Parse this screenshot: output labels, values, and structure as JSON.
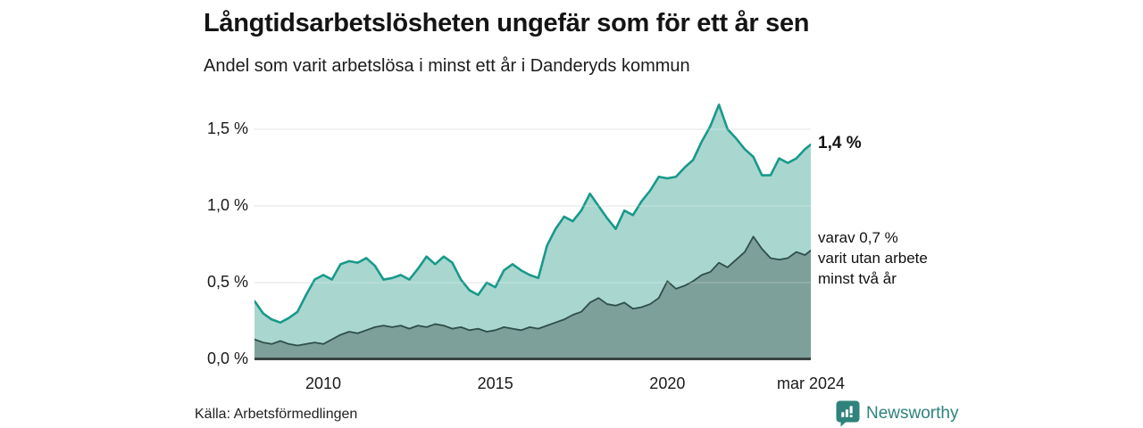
{
  "page": {
    "background": "#ffffff"
  },
  "chart_data": {
    "type": "area",
    "title": "Långtidsarbetslösheten ungefär som för ett år sen",
    "subtitle": "Andel som varit arbetslösa i minst ett år i Danderyds kommun",
    "source": "Källa: Arbetsförmedlingen",
    "brand": "Newsworthy",
    "x_unit": "decimal_year",
    "xlim": [
      2008.0,
      2024.17
    ],
    "ylim": [
      0,
      1.674
    ],
    "grid": true,
    "legend_position": "none",
    "colors": {
      "grid": "#d8d8d8",
      "baseline": "#3a4442",
      "text": "#1a1a1a",
      "brand_teal": "#2f837c"
    },
    "xticks": [
      {
        "value": 2010,
        "label": "2010"
      },
      {
        "value": 2015,
        "label": "2015"
      },
      {
        "value": 2020,
        "label": "2020"
      },
      {
        "value": 2024.17,
        "label": "mar 2024"
      }
    ],
    "yticks": [
      {
        "value": 0,
        "label": "0,0 %"
      },
      {
        "value": 0.5,
        "label": "0,5 %"
      },
      {
        "value": 1.0,
        "label": "1,0 %"
      },
      {
        "value": 1.5,
        "label": "1,5 %"
      }
    ],
    "x": [
      2008.0,
      2008.25,
      2008.5,
      2008.75,
      2009.0,
      2009.25,
      2009.5,
      2009.75,
      2010.0,
      2010.25,
      2010.5,
      2010.75,
      2011.0,
      2011.25,
      2011.5,
      2011.75,
      2012.0,
      2012.25,
      2012.5,
      2012.75,
      2013.0,
      2013.25,
      2013.5,
      2013.75,
      2014.0,
      2014.25,
      2014.5,
      2014.75,
      2015.0,
      2015.25,
      2015.5,
      2015.75,
      2016.0,
      2016.25,
      2016.5,
      2016.75,
      2017.0,
      2017.25,
      2017.5,
      2017.75,
      2018.0,
      2018.25,
      2018.5,
      2018.75,
      2019.0,
      2019.25,
      2019.5,
      2019.75,
      2020.0,
      2020.25,
      2020.5,
      2020.75,
      2021.0,
      2021.25,
      2021.5,
      2021.75,
      2022.0,
      2022.25,
      2022.5,
      2022.75,
      2023.0,
      2023.25,
      2023.5,
      2023.75,
      2024.0,
      2024.17
    ],
    "series": [
      {
        "name": "Andel arbetslösa i minst ett år",
        "line_color": "#18998a",
        "fill_color": "#a9d7d0",
        "line_width": 2.6,
        "end_label": "1,4 %",
        "values": [
          0.38,
          0.3,
          0.26,
          0.24,
          0.27,
          0.31,
          0.42,
          0.52,
          0.55,
          0.52,
          0.62,
          0.64,
          0.63,
          0.66,
          0.61,
          0.52,
          0.53,
          0.55,
          0.52,
          0.59,
          0.67,
          0.62,
          0.67,
          0.63,
          0.52,
          0.45,
          0.42,
          0.5,
          0.47,
          0.58,
          0.62,
          0.58,
          0.55,
          0.53,
          0.74,
          0.85,
          0.93,
          0.9,
          0.97,
          1.08,
          1.0,
          0.92,
          0.85,
          0.97,
          0.94,
          1.03,
          1.1,
          1.19,
          1.18,
          1.19,
          1.25,
          1.3,
          1.42,
          1.52,
          1.66,
          1.5,
          1.44,
          1.37,
          1.32,
          1.2,
          1.2,
          1.31,
          1.28,
          1.31,
          1.37,
          1.4
        ]
      },
      {
        "name": "Varav utan arbete minst två år",
        "line_color": "#2e4f49",
        "fill_color": "#7ea09a",
        "line_width": 1.8,
        "end_label_lines": [
          "varav 0,7 %",
          "varit utan arbete",
          "minst två år"
        ],
        "values": [
          0.13,
          0.11,
          0.1,
          0.12,
          0.1,
          0.09,
          0.1,
          0.11,
          0.1,
          0.13,
          0.16,
          0.18,
          0.17,
          0.19,
          0.21,
          0.22,
          0.21,
          0.22,
          0.2,
          0.22,
          0.21,
          0.23,
          0.22,
          0.2,
          0.21,
          0.19,
          0.2,
          0.18,
          0.19,
          0.21,
          0.2,
          0.19,
          0.21,
          0.2,
          0.22,
          0.24,
          0.26,
          0.29,
          0.31,
          0.37,
          0.4,
          0.36,
          0.35,
          0.37,
          0.33,
          0.34,
          0.36,
          0.4,
          0.51,
          0.46,
          0.48,
          0.51,
          0.55,
          0.57,
          0.63,
          0.6,
          0.65,
          0.7,
          0.8,
          0.72,
          0.66,
          0.65,
          0.66,
          0.7,
          0.68,
          0.71
        ]
      }
    ]
  }
}
